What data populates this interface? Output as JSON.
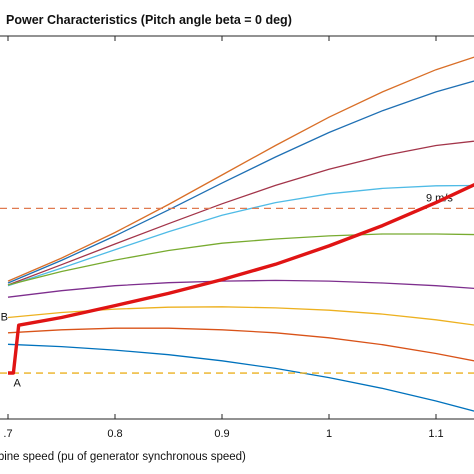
{
  "chart_data": {
    "type": "line",
    "title": "Power Characteristics (Pitch angle beta = 0 deg)",
    "xlabel": "rbine speed (pu of generator synchronous speed)",
    "ylabel": "",
    "xlim": [
      0.7,
      1.2
    ],
    "x_ticks": [
      0.7,
      0.8,
      0.9,
      1.0,
      1.1
    ],
    "x_tick_labels": [
      ".7",
      "0.8",
      "0.9",
      "1",
      "1.1"
    ],
    "grid": false,
    "x": [
      0.7,
      0.75,
      0.8,
      0.85,
      0.9,
      0.95,
      1.0,
      1.05,
      1.1,
      1.15,
      1.2
    ],
    "series": [
      {
        "color": "#d96f28",
        "values": [
          0.64,
          0.58,
          0.513,
          0.44,
          0.363,
          0.286,
          0.212,
          0.146,
          0.088,
          0.042,
          0.006
        ]
      },
      {
        "color": "#1f70b4",
        "values": [
          0.645,
          0.586,
          0.522,
          0.454,
          0.384,
          0.316,
          0.252,
          0.195,
          0.146,
          0.106,
          0.075
        ]
      },
      {
        "color": "#a3354a",
        "values": [
          0.65,
          0.597,
          0.543,
          0.49,
          0.438,
          0.39,
          0.348,
          0.313,
          0.286,
          0.27,
          0.262
        ]
      },
      {
        "color": "#4fbbe6",
        "values": [
          0.652,
          0.606,
          0.558,
          0.511,
          0.468,
          0.435,
          0.412,
          0.398,
          0.391,
          0.39,
          0.393
        ]
      },
      {
        "color": "#78ab30",
        "values": [
          0.65,
          0.615,
          0.585,
          0.56,
          0.541,
          0.53,
          0.522,
          0.517,
          0.517,
          0.519,
          0.522
        ]
      },
      {
        "color": "#7e2f8e",
        "values": [
          0.682,
          0.665,
          0.652,
          0.644,
          0.64,
          0.638,
          0.64,
          0.645,
          0.652,
          0.662,
          0.676
        ]
      },
      {
        "color": "#edb120",
        "values": [
          0.735,
          0.722,
          0.713,
          0.708,
          0.707,
          0.71,
          0.716,
          0.726,
          0.741,
          0.76,
          0.784
        ]
      },
      {
        "color": "#d95319",
        "values": [
          0.775,
          0.767,
          0.763,
          0.763,
          0.767,
          0.775,
          0.788,
          0.806,
          0.829,
          0.856,
          0.888
        ]
      },
      {
        "color": "#0072bd",
        "values": [
          0.805,
          0.811,
          0.82,
          0.832,
          0.848,
          0.868,
          0.892,
          0.92,
          0.953,
          0.99,
          1.03
        ]
      }
    ],
    "max_power_curve": {
      "color": "#e01414",
      "x": [
        0.7,
        0.705,
        0.71,
        0.75,
        0.8,
        0.85,
        0.9,
        0.95,
        1.0,
        1.05,
        1.1,
        1.15,
        1.2
      ],
      "values": [
        0.88,
        0.88,
        0.755,
        0.735,
        0.704,
        0.672,
        0.636,
        0.596,
        0.548,
        0.495,
        0.435,
        0.37,
        0.3
      ]
    },
    "reference_lines": [
      {
        "color": "#e07a50",
        "value": 0.45,
        "label": "9 m/s"
      },
      {
        "color": "#ecb020",
        "value": 0.88,
        "label": ""
      }
    ],
    "annotations": [
      {
        "text": "B",
        "x": 0.695,
        "value": 0.732
      },
      {
        "text": "A",
        "x": 0.707,
        "value": 0.905
      }
    ]
  }
}
